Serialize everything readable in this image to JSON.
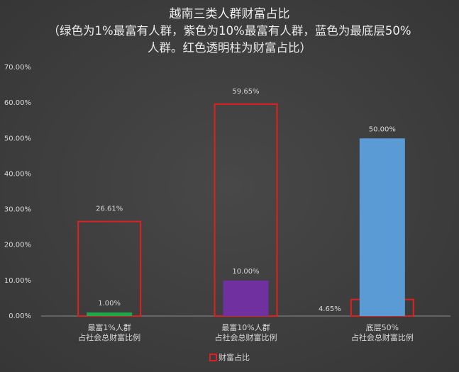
{
  "chart_data": {
    "type": "bar",
    "title": "越南三类人群财富占比",
    "subtitle": "（绿色为1%最富有人群，紫色为10%最富有人群，蓝色为最底层50%人群。红色透明柱为财富占比）",
    "categories": [
      [
        "最富1%人群",
        "占社会总财富比例"
      ],
      [
        "最富10%人群",
        "占社会总财富比例"
      ],
      [
        "底层50%",
        "占社会总财富比例"
      ]
    ],
    "series": [
      {
        "name": "财富占比",
        "color": "#e02020",
        "values": [
          26.61,
          59.65,
          4.65
        ],
        "value_labels": [
          "26.61%",
          "59.65%",
          "4.65%"
        ]
      },
      {
        "colors": [
          "#1fa84a",
          "#7030a0",
          "#5b9bd5"
        ],
        "values": [
          1,
          10,
          50
        ],
        "value_labels": [
          "1.00%",
          "10.00%",
          "50.00%"
        ]
      }
    ],
    "ylim": [
      0,
      70
    ],
    "yticks": [
      {
        "value": 0,
        "label": "0.00%"
      },
      {
        "value": 10,
        "label": "10.00%"
      },
      {
        "value": 20,
        "label": "20.00%"
      },
      {
        "value": 30,
        "label": "30.00%"
      },
      {
        "value": 40,
        "label": "40.00%"
      },
      {
        "value": 50,
        "label": "50.00%"
      },
      {
        "value": 60,
        "label": "60.00%"
      },
      {
        "value": 70,
        "label": "70.00%"
      }
    ],
    "grid": false,
    "legend": "bottom"
  }
}
